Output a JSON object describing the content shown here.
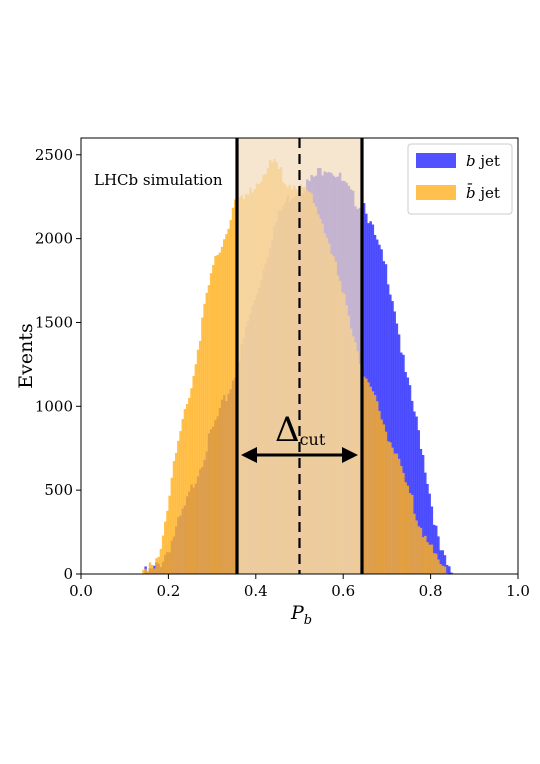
{
  "chart_data": {
    "type": "histogram",
    "xlabel": "P",
    "xlabel_sub": "b",
    "ylabel": "Events",
    "xlim": [
      0.0,
      1.0
    ],
    "ylim": [
      0,
      2600
    ],
    "x_ticks": [
      0.0,
      0.2,
      0.4,
      0.6,
      0.8,
      1.0
    ],
    "x_tick_labels": [
      "0.0",
      "0.2",
      "0.4",
      "0.6",
      "0.8",
      "1.0"
    ],
    "y_ticks": [
      0,
      500,
      1000,
      1500,
      2000,
      2500
    ],
    "y_tick_labels": [
      "0",
      "500",
      "1000",
      "1500",
      "2000",
      "2500"
    ],
    "annotation": "LHCb simulation",
    "delta_label": "Δ",
    "delta_sub": "cut",
    "cut_low": 0.357,
    "cut_high": 0.643,
    "center_line": 0.5,
    "bin_range": [
      0.14,
      0.86
    ],
    "bin_width": 0.005,
    "legend_position": "top-right",
    "series": [
      {
        "name": "b jet",
        "legend_symbol": "b",
        "legend_rest": " jet",
        "color": "#3333ff",
        "profile_x": [
          0.14,
          0.16,
          0.18,
          0.2,
          0.22,
          0.24,
          0.26,
          0.28,
          0.3,
          0.32,
          0.34,
          0.36,
          0.38,
          0.4,
          0.42,
          0.44,
          0.46,
          0.48,
          0.5,
          0.52,
          0.54,
          0.56,
          0.58,
          0.6,
          0.62,
          0.64,
          0.65,
          0.66,
          0.68,
          0.7,
          0.72,
          0.74,
          0.76,
          0.78,
          0.8,
          0.82,
          0.84,
          0.86
        ],
        "profile_y": [
          0,
          10,
          60,
          150,
          280,
          410,
          560,
          700,
          850,
          980,
          1100,
          1250,
          1480,
          1650,
          1850,
          2050,
          2180,
          2260,
          2300,
          2330,
          2380,
          2440,
          2400,
          2330,
          2250,
          2200,
          2220,
          2100,
          1950,
          1800,
          1560,
          1220,
          1000,
          750,
          450,
          150,
          30,
          0
        ]
      },
      {
        "name": "b̄ jet",
        "legend_symbol": "b̄",
        "legend_rest": " jet",
        "color": "#ffb020",
        "profile_x": [
          0.14,
          0.16,
          0.18,
          0.2,
          0.22,
          0.24,
          0.26,
          0.28,
          0.3,
          0.32,
          0.34,
          0.35,
          0.36,
          0.38,
          0.4,
          0.42,
          0.44,
          0.46,
          0.48,
          0.5,
          0.52,
          0.54,
          0.56,
          0.58,
          0.6,
          0.62,
          0.64,
          0.66,
          0.68,
          0.7,
          0.72,
          0.74,
          0.76,
          0.78,
          0.8,
          0.82,
          0.84,
          0.86
        ],
        "profile_y": [
          0,
          30,
          150,
          450,
          750,
          1000,
          1220,
          1560,
          1800,
          1950,
          2100,
          2220,
          2200,
          2250,
          2330,
          2400,
          2440,
          2380,
          2330,
          2300,
          2260,
          2180,
          2050,
          1850,
          1650,
          1480,
          1250,
          1100,
          980,
          850,
          700,
          560,
          410,
          280,
          150,
          60,
          10,
          0
        ]
      }
    ]
  }
}
